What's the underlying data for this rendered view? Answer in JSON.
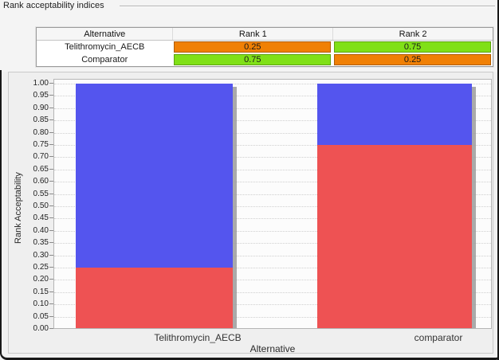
{
  "groupbox": {
    "title": "Rank acceptability indices"
  },
  "table": {
    "columns": [
      "Alternative",
      "Rank 1",
      "Rank 2"
    ],
    "rows": [
      {
        "alternative": "Telithromycin_AECB",
        "cells": [
          {
            "value": "0.25",
            "color": "#f08005"
          },
          {
            "value": "0.75",
            "color": "#80e017"
          }
        ]
      },
      {
        "alternative": "Comparator",
        "cells": [
          {
            "value": "0.75",
            "color": "#80e017"
          },
          {
            "value": "0.25",
            "color": "#f08005"
          }
        ]
      }
    ]
  },
  "chart_data": {
    "type": "bar",
    "stacked": true,
    "categories": [
      "Telithromycin_AECB",
      "comparator"
    ],
    "series": [
      {
        "name": "Rank 1",
        "color": "#ee5253",
        "values": [
          0.25,
          0.75
        ]
      },
      {
        "name": "Rank 2",
        "color": "#5455ee",
        "values": [
          0.75,
          0.25
        ]
      }
    ],
    "xlabel": "Alternative",
    "ylabel": "Rank Acceptability",
    "ylim": [
      0.0,
      1.0
    ],
    "ytick_step": 0.05,
    "yticks": [
      "1.00",
      "0.95",
      "0.90",
      "0.85",
      "0.80",
      "0.75",
      "0.70",
      "0.65",
      "0.60",
      "0.55",
      "0.50",
      "0.45",
      "0.40",
      "0.35",
      "0.30",
      "0.25",
      "0.20",
      "0.15",
      "0.10",
      "0.05",
      "0.00"
    ],
    "grid": "horizontal-dotted",
    "legend": "none"
  },
  "colors": {
    "cell_orange": "#f08005",
    "cell_green": "#80e017",
    "bar_red": "#ee5253",
    "bar_blue": "#5455ee",
    "bar_shadow": "#9b9b9b"
  }
}
